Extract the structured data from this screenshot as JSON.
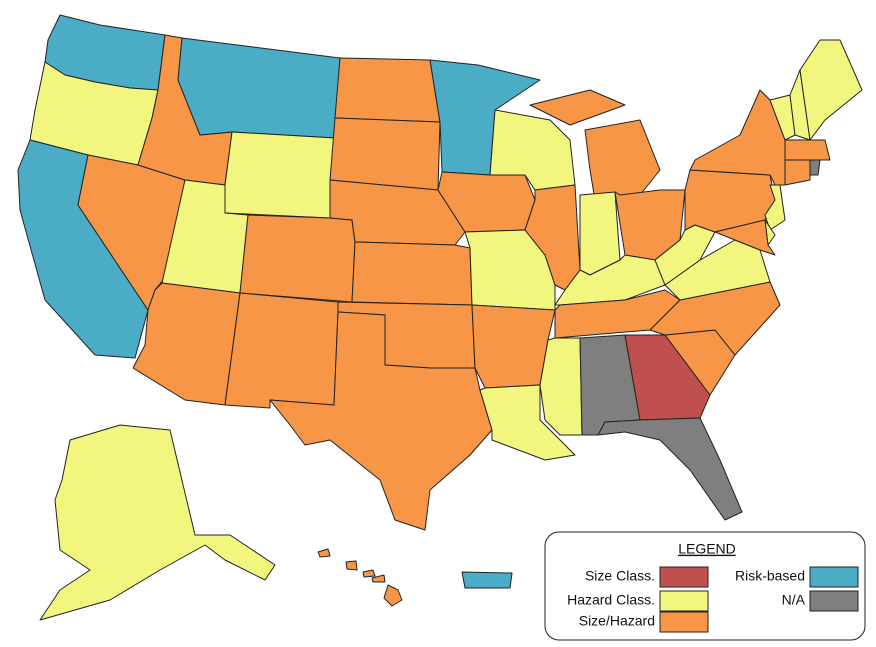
{
  "legend": {
    "title": "LEGEND",
    "items": [
      {
        "label": "Size Class.",
        "color": "#c0504d"
      },
      {
        "label": "Hazard Class.",
        "color": "#f2f57e"
      },
      {
        "label": "Size/Hazard",
        "color": "#f79646"
      },
      {
        "label": "Risk-based",
        "color": "#4bacc6"
      },
      {
        "label": "N/A",
        "color": "#7f7f7f"
      }
    ]
  }
}
